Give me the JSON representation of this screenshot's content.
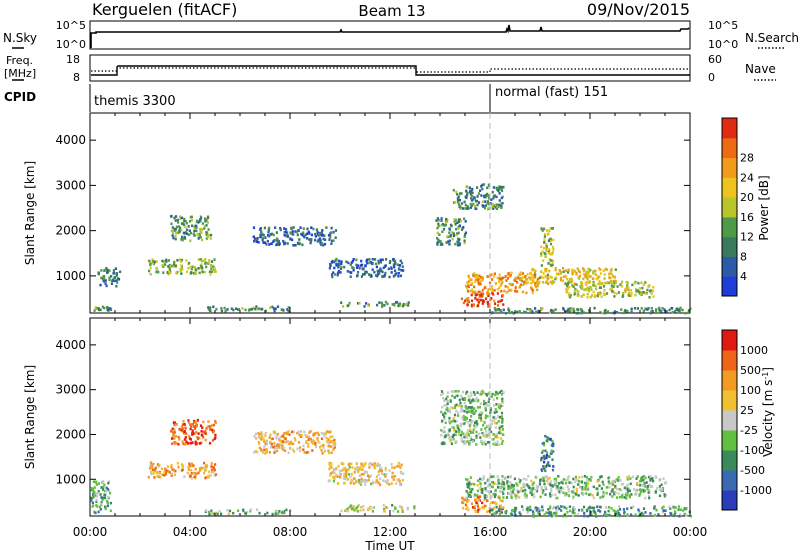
{
  "header": {
    "station": "Kerguelen (fitACF)",
    "beam": "Beam 13",
    "date": "09/Nov/2015"
  },
  "top_panels": {
    "nsky": {
      "label": "N.Sky",
      "tick_hi": "10^5",
      "tick_lo": "10^0"
    },
    "nsearch": {
      "label": "N.Search",
      "tick_hi": "10^5",
      "tick_lo": "10^0"
    },
    "freq": {
      "label_1": "Freq.",
      "label_2": "[MHz]",
      "tick_hi": "18",
      "tick_lo": "8"
    },
    "nave": {
      "label": "Nave",
      "tick_hi": "60",
      "tick_lo": "0"
    },
    "cpid": {
      "label": "CPID",
      "modes": [
        {
          "name": "themis 3300",
          "start_hour": 0
        },
        {
          "name": "normal (fast) 151",
          "start_hour": 16
        }
      ]
    }
  },
  "chart_data": [
    {
      "type": "heatmap",
      "ylabel": "Slant Range [km]",
      "xlabel": "",
      "x_range_hours": [
        0,
        24
      ],
      "ylim": [
        180,
        4600
      ],
      "yticks": [
        1000,
        2000,
        3000,
        4000
      ],
      "colorbar": {
        "label": "Power [dB]",
        "ticks": [
          "4",
          "8",
          "12",
          "16",
          "20",
          "24",
          "28"
        ],
        "range": [
          0,
          32
        ],
        "colors": [
          "#1e3cd8",
          "#2c5aa8",
          "#3a7a5c",
          "#4f9a48",
          "#b8c62a",
          "#eec320",
          "#f29a1a",
          "#ee6a12",
          "#e02a12"
        ]
      },
      "regions": [
        {
          "x0": 0.0,
          "x1": 0.8,
          "y0": 250,
          "y1": 350,
          "level": 0.35
        },
        {
          "x0": 0.3,
          "x1": 1.2,
          "y0": 800,
          "y1": 1200,
          "level": 0.25
        },
        {
          "x0": 2.3,
          "x1": 5.0,
          "y0": 1050,
          "y1": 1400,
          "level": 0.45
        },
        {
          "x0": 3.2,
          "x1": 4.8,
          "y0": 1800,
          "y1": 2350,
          "level": 0.35
        },
        {
          "x0": 4.5,
          "x1": 8.0,
          "y0": 250,
          "y1": 350,
          "level": 0.3
        },
        {
          "x0": 6.5,
          "x1": 9.8,
          "y0": 1700,
          "y1": 2100,
          "level": 0.2
        },
        {
          "x0": 9.5,
          "x1": 12.5,
          "y0": 1000,
          "y1": 1400,
          "level": 0.2
        },
        {
          "x0": 10.0,
          "x1": 13.0,
          "y0": 350,
          "y1": 450,
          "level": 0.35
        },
        {
          "x0": 13.8,
          "x1": 15.0,
          "y0": 1700,
          "y1": 2300,
          "level": 0.3
        },
        {
          "x0": 14.5,
          "x1": 16.5,
          "y0": 2500,
          "y1": 3050,
          "level": 0.3
        },
        {
          "x0": 14.8,
          "x1": 16.5,
          "y0": 350,
          "y1": 650,
          "level": 0.9
        },
        {
          "x0": 15.0,
          "x1": 18.0,
          "y0": 650,
          "y1": 1100,
          "level": 0.7
        },
        {
          "x0": 17.5,
          "x1": 21.0,
          "y0": 850,
          "y1": 1200,
          "level": 0.6
        },
        {
          "x0": 18.0,
          "x1": 18.5,
          "y0": 1200,
          "y1": 2100,
          "level": 0.5
        },
        {
          "x0": 19.0,
          "x1": 22.5,
          "y0": 550,
          "y1": 900,
          "level": 0.5
        },
        {
          "x0": 16.0,
          "x1": 24.0,
          "y0": 200,
          "y1": 320,
          "level": 0.3
        }
      ]
    },
    {
      "type": "heatmap",
      "ylabel": "Slant Range [km]",
      "xlabel": "Time UT",
      "x_range_hours": [
        0,
        24
      ],
      "xticks": [
        "00:00",
        "04:00",
        "08:00",
        "12:00",
        "16:00",
        "20:00",
        "00:00"
      ],
      "ylim": [
        180,
        4600
      ],
      "yticks": [
        1000,
        2000,
        3000,
        4000
      ],
      "colorbar": {
        "label": "Velocity [m s^-1]",
        "ticks": [
          "1000",
          "500",
          "100",
          "25",
          "-25",
          "-100",
          "-500",
          "-1000"
        ],
        "colors": [
          "#2a3cb8",
          "#3a6ab0",
          "#3a8a5c",
          "#62c040",
          "#c8c8c8",
          "#f0c030",
          "#f39a22",
          "#ee6418",
          "#e01a12"
        ]
      },
      "regions": [
        {
          "x0": 0.0,
          "x1": 0.8,
          "y0": 250,
          "y1": 1000,
          "level": 0.35
        },
        {
          "x0": 2.3,
          "x1": 5.0,
          "y0": 1050,
          "y1": 1400,
          "level": 0.7
        },
        {
          "x0": 3.2,
          "x1": 5.0,
          "y0": 1800,
          "y1": 2350,
          "level": 0.85
        },
        {
          "x0": 4.5,
          "x1": 8.0,
          "y0": 250,
          "y1": 350,
          "level": 0.4
        },
        {
          "x0": 6.5,
          "x1": 9.8,
          "y0": 1600,
          "y1": 2100,
          "level": 0.65
        },
        {
          "x0": 9.5,
          "x1": 12.5,
          "y0": 900,
          "y1": 1400,
          "level": 0.6
        },
        {
          "x0": 10.0,
          "x1": 13.0,
          "y0": 300,
          "y1": 450,
          "level": 0.5
        },
        {
          "x0": 14.0,
          "x1": 16.5,
          "y0": 1800,
          "y1": 3000,
          "level": 0.4
        },
        {
          "x0": 14.8,
          "x1": 16.5,
          "y0": 300,
          "y1": 650,
          "level": 0.75
        },
        {
          "x0": 15.0,
          "x1": 23.0,
          "y0": 600,
          "y1": 1100,
          "level": 0.4
        },
        {
          "x0": 16.0,
          "x1": 24.0,
          "y0": 200,
          "y1": 420,
          "level": 0.3
        },
        {
          "x0": 18.0,
          "x1": 18.5,
          "y0": 1200,
          "y1": 2000,
          "level": 0.2
        }
      ]
    }
  ]
}
